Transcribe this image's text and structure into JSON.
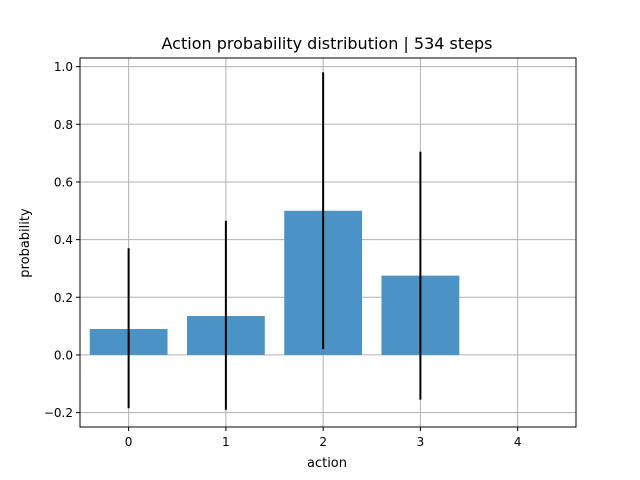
{
  "chart_data": {
    "type": "bar",
    "title": "Action probability distribution | 534 steps",
    "xlabel": "action",
    "ylabel": "probability",
    "categories": [
      "0",
      "1",
      "2",
      "3",
      "4"
    ],
    "x": [
      0,
      1,
      2,
      3,
      4
    ],
    "values": [
      0.09,
      0.135,
      0.5,
      0.275,
      0.0
    ],
    "error_low": [
      -0.185,
      -0.19,
      0.02,
      -0.155,
      null
    ],
    "error_high": [
      0.37,
      0.465,
      0.98,
      0.705,
      null
    ],
    "xlim": [
      -0.5,
      4.6
    ],
    "ylim": [
      -0.25,
      1.03
    ],
    "yticks": [
      -0.2,
      0.0,
      0.2,
      0.4,
      0.6,
      0.8,
      1.0
    ],
    "ytick_labels": [
      "−0.2",
      "0.0",
      "0.2",
      "0.4",
      "0.6",
      "0.8",
      "1.0"
    ],
    "grid": true,
    "bar_color": "#4a93c4",
    "error_color": "#000000",
    "grid_color": "#b0b0b0"
  }
}
